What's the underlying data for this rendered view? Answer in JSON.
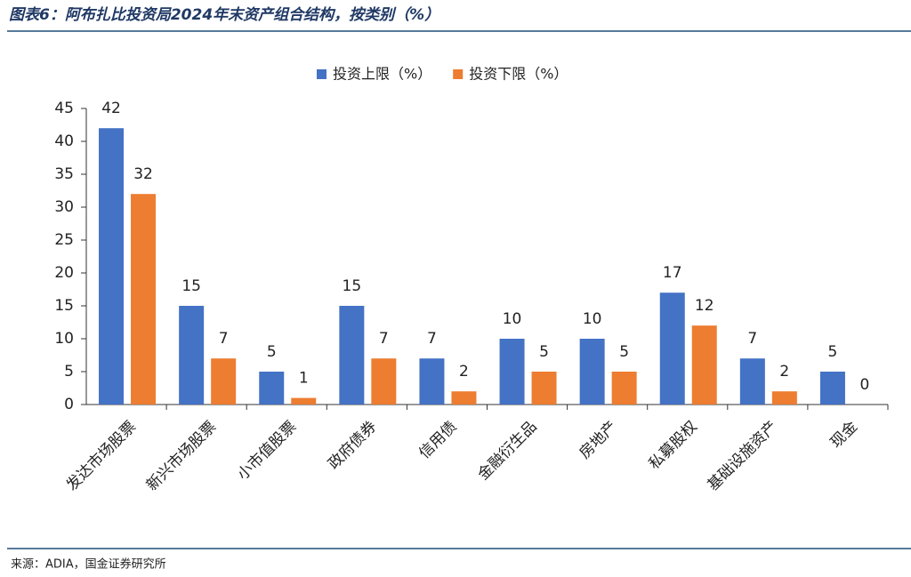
{
  "chart_data": {
    "type": "bar",
    "title": "图表6：阿布扎比投资局2024年末资产组合结构，按类别（%）",
    "source": "来源：ADIA，国金证券研究所",
    "categories": [
      "发达市场股票",
      "新兴市场股票",
      "小市值股票",
      "政府债券",
      "信用债",
      "金融衍生品",
      "房地产",
      "私募股权",
      "基础设施资产",
      "现金"
    ],
    "series": [
      {
        "name": "投资上限（%）",
        "color": "#4472c4",
        "values": [
          42,
          15,
          5,
          15,
          7,
          10,
          10,
          17,
          7,
          5
        ]
      },
      {
        "name": "投资下限（%）",
        "color": "#ed7d31",
        "values": [
          32,
          7,
          1,
          7,
          2,
          5,
          5,
          12,
          2,
          0
        ]
      }
    ],
    "ylim": [
      0,
      45
    ],
    "yticks": [
      0,
      5,
      10,
      15,
      20,
      25,
      30,
      35,
      40,
      45
    ],
    "grid": false
  }
}
